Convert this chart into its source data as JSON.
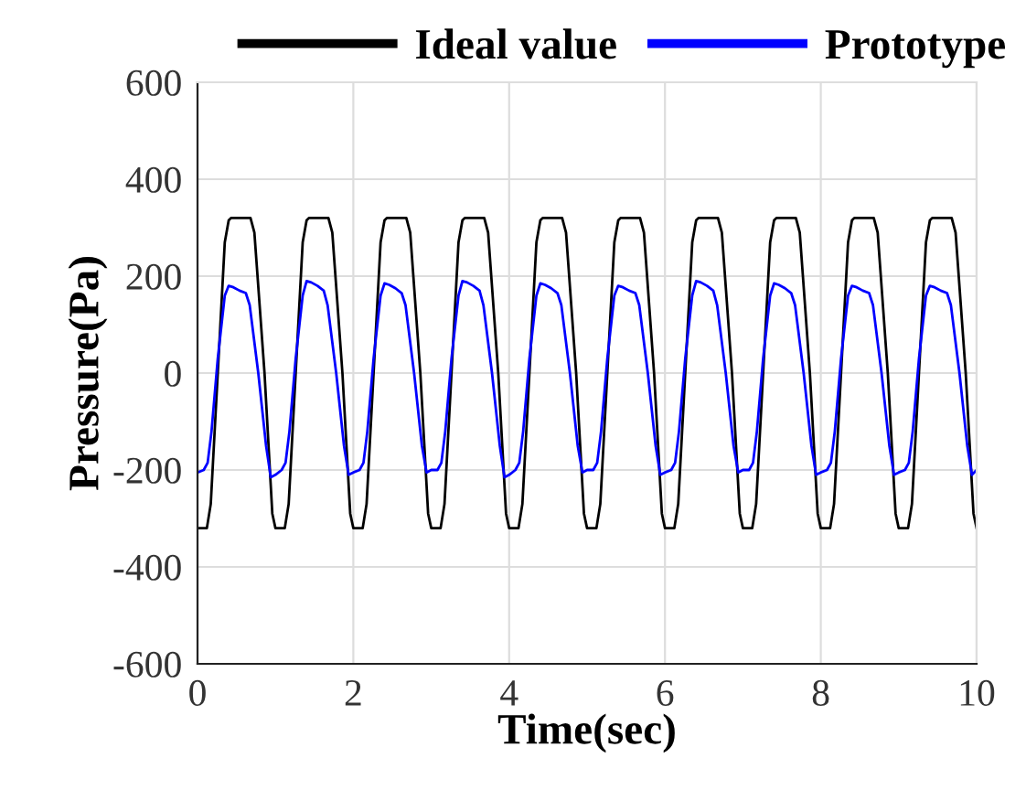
{
  "chart_data": {
    "type": "line",
    "xlabel": "Time(sec)",
    "ylabel": "Pressure(Pa)",
    "xlim": [
      0,
      10
    ],
    "xticks": [
      0,
      2,
      4,
      6,
      8,
      10
    ],
    "ylim": [
      -600,
      600
    ],
    "yticks": [
      -600,
      -400,
      -200,
      0,
      200,
      400,
      600
    ],
    "grid": true,
    "legend": "top right",
    "marker": "none",
    "line_style": "solid",
    "series": [
      {
        "name": "Ideal value",
        "color": "#000000",
        "x": [
          0,
          0.12,
          0.17,
          0.26,
          0.35,
          0.4,
          0.43,
          0.68,
          0.73,
          0.86,
          0.96,
          1,
          1.12,
          1.17,
          1.26,
          1.35,
          1.4,
          1.43,
          1.68,
          1.73,
          1.86,
          1.96,
          2,
          2.12,
          2.17,
          2.26,
          2.35,
          2.4,
          2.43,
          2.68,
          2.73,
          2.86,
          2.96,
          3,
          3.12,
          3.17,
          3.26,
          3.35,
          3.4,
          3.43,
          3.68,
          3.73,
          3.86,
          3.96,
          4,
          4.12,
          4.17,
          4.26,
          4.35,
          4.4,
          4.43,
          4.68,
          4.73,
          4.86,
          4.96,
          5,
          5.12,
          5.17,
          5.26,
          5.35,
          5.4,
          5.43,
          5.68,
          5.73,
          5.86,
          5.96,
          6,
          6.12,
          6.17,
          6.26,
          6.35,
          6.4,
          6.43,
          6.68,
          6.73,
          6.86,
          6.96,
          7,
          7.12,
          7.17,
          7.26,
          7.35,
          7.4,
          7.43,
          7.68,
          7.73,
          7.86,
          7.96,
          8,
          8.12,
          8.17,
          8.26,
          8.35,
          8.4,
          8.43,
          8.68,
          8.73,
          8.86,
          8.96,
          9,
          9.12,
          9.17,
          9.26,
          9.35,
          9.4,
          9.43,
          9.68,
          9.73,
          9.86,
          9.96,
          10
        ],
        "values": [
          -320,
          -320,
          -270,
          0,
          270,
          315,
          320,
          320,
          290,
          0,
          -290,
          -320,
          -320,
          -270,
          0,
          270,
          315,
          320,
          320,
          290,
          0,
          -290,
          -320,
          -320,
          -270,
          0,
          270,
          315,
          320,
          320,
          290,
          0,
          -290,
          -320,
          -320,
          -270,
          0,
          270,
          315,
          320,
          320,
          290,
          0,
          -290,
          -320,
          -320,
          -270,
          0,
          270,
          315,
          320,
          320,
          290,
          0,
          -290,
          -320,
          -320,
          -270,
          0,
          270,
          315,
          320,
          320,
          290,
          0,
          -290,
          -320,
          -320,
          -270,
          0,
          270,
          315,
          320,
          320,
          290,
          0,
          -290,
          -320,
          -320,
          -270,
          0,
          270,
          315,
          320,
          320,
          290,
          0,
          -290,
          -320,
          -320,
          -270,
          0,
          270,
          315,
          320,
          320,
          290,
          0,
          -290,
          -320,
          -320,
          -270,
          0,
          270,
          315,
          320,
          320,
          290,
          0,
          -290,
          -320
        ]
      },
      {
        "name": "Prototype",
        "color": "#0000ff",
        "x": [
          0,
          0.08,
          0.13,
          0.18,
          0.26,
          0.35,
          0.4,
          0.46,
          0.54,
          0.62,
          0.67,
          0.78,
          0.88,
          0.94,
          1,
          1.08,
          1.13,
          1.18,
          1.26,
          1.35,
          1.4,
          1.46,
          1.54,
          1.62,
          1.67,
          1.78,
          1.88,
          1.94,
          2,
          2.08,
          2.13,
          2.18,
          2.26,
          2.35,
          2.4,
          2.46,
          2.54,
          2.62,
          2.67,
          2.78,
          2.88,
          2.94,
          3,
          3.08,
          3.13,
          3.18,
          3.26,
          3.35,
          3.4,
          3.46,
          3.54,
          3.62,
          3.67,
          3.78,
          3.88,
          3.94,
          4,
          4.08,
          4.13,
          4.18,
          4.26,
          4.35,
          4.4,
          4.46,
          4.54,
          4.62,
          4.67,
          4.78,
          4.88,
          4.94,
          5,
          5.08,
          5.13,
          5.18,
          5.26,
          5.35,
          5.4,
          5.46,
          5.54,
          5.62,
          5.67,
          5.78,
          5.88,
          5.94,
          6,
          6.08,
          6.13,
          6.18,
          6.26,
          6.35,
          6.4,
          6.46,
          6.54,
          6.62,
          6.67,
          6.78,
          6.88,
          6.94,
          7,
          7.08,
          7.13,
          7.18,
          7.26,
          7.35,
          7.4,
          7.46,
          7.54,
          7.62,
          7.67,
          7.78,
          7.88,
          7.94,
          8,
          8.08,
          8.13,
          8.18,
          8.26,
          8.35,
          8.4,
          8.46,
          8.54,
          8.62,
          8.67,
          8.78,
          8.88,
          8.94,
          9,
          9.08,
          9.13,
          9.18,
          9.26,
          9.35,
          9.4,
          9.46,
          9.54,
          9.62,
          9.67,
          9.78,
          9.88,
          9.94,
          10
        ],
        "values": [
          -205,
          -200,
          -185,
          -120,
          30,
          160,
          180,
          177,
          170,
          165,
          140,
          0,
          -150,
          -215,
          -210,
          -200,
          -185,
          -120,
          30,
          160,
          190,
          187,
          180,
          170,
          140,
          0,
          -150,
          -210,
          -205,
          -200,
          -185,
          -120,
          30,
          160,
          185,
          182,
          175,
          165,
          140,
          0,
          -150,
          -205,
          -200,
          -200,
          -185,
          -120,
          30,
          160,
          190,
          187,
          180,
          170,
          140,
          0,
          -150,
          -215,
          -210,
          -200,
          -185,
          -120,
          30,
          160,
          185,
          182,
          175,
          165,
          140,
          0,
          -150,
          -205,
          -200,
          -200,
          -185,
          -120,
          30,
          160,
          180,
          177,
          170,
          165,
          140,
          0,
          -150,
          -210,
          -205,
          -200,
          -185,
          -120,
          30,
          160,
          190,
          187,
          180,
          170,
          140,
          0,
          -150,
          -205,
          -200,
          -200,
          -185,
          -120,
          30,
          160,
          185,
          182,
          175,
          165,
          140,
          0,
          -150,
          -210,
          -205,
          -200,
          -185,
          -120,
          30,
          160,
          180,
          177,
          170,
          165,
          140,
          0,
          -150,
          -210,
          -205,
          -200,
          -185,
          -120,
          30,
          160,
          180,
          177,
          170,
          165,
          140,
          0,
          -150,
          -210,
          -200
        ]
      }
    ]
  }
}
